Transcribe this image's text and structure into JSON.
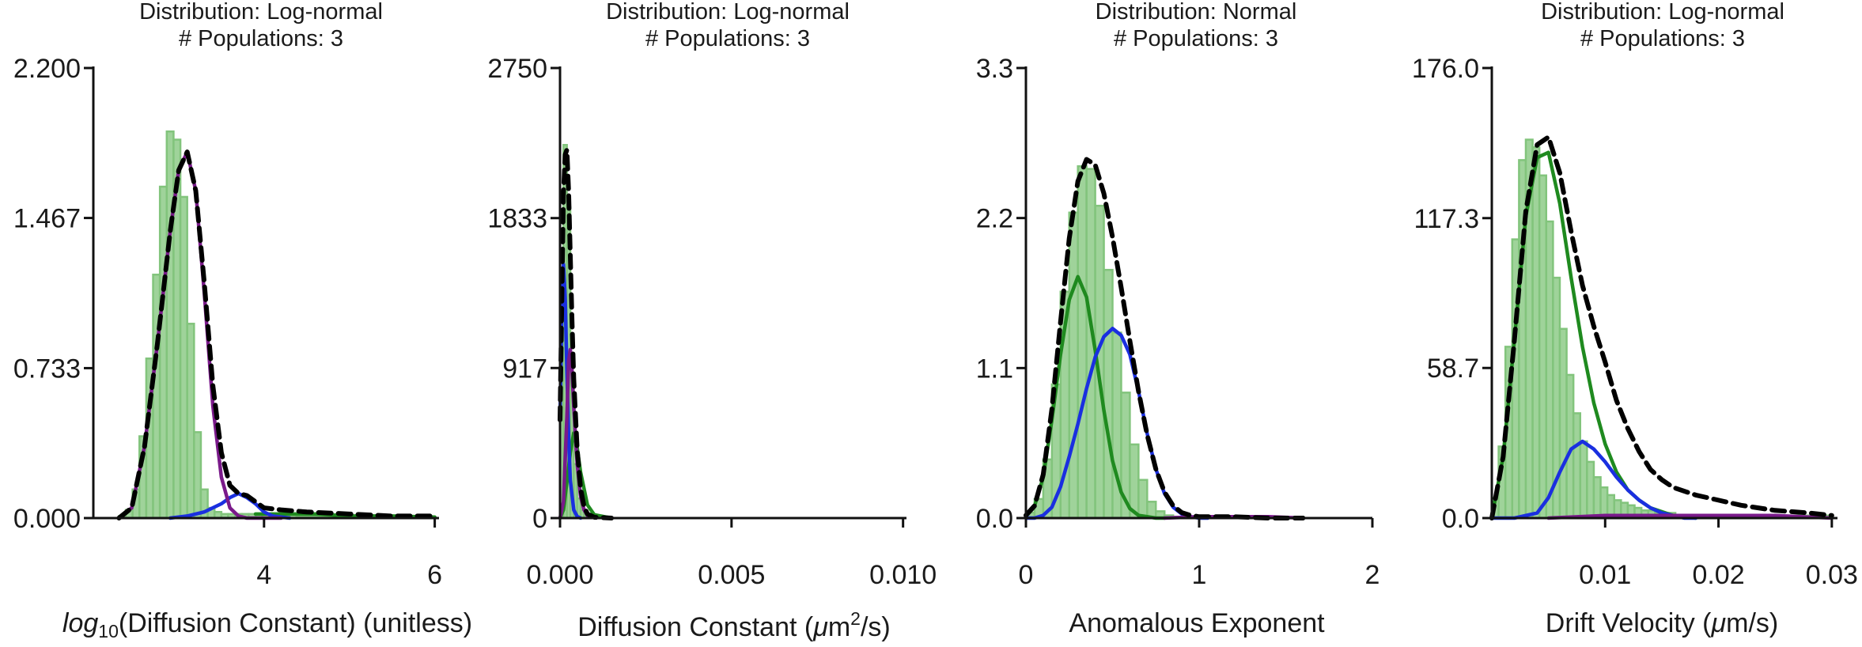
{
  "colors": {
    "histogram_fill": "#9fd39a",
    "histogram_edge": "#82c47c",
    "total_fit": "#000000",
    "component_green": "#1f8a1f",
    "component_blue": "#1a2fe0",
    "component_purple": "#7a1a8a"
  },
  "chart_data": [
    {
      "type": "bar",
      "title": "Distribution: Log-normal",
      "subtitle": "# Populations: 3",
      "xlabel": "log10(Diffusion Constant) (unitless)",
      "xlabel_parts": {
        "log": "log",
        "sub": "10",
        "rest": "(Diffusion Constant) (unitless)"
      },
      "ylabel": "",
      "xlim": [
        2.0,
        6.05
      ],
      "ylim": [
        0,
        2.2
      ],
      "xticks": [
        4,
        6
      ],
      "xtick_labels": [
        "4",
        "6"
      ],
      "yticks": [
        0,
        0.733,
        1.467,
        2.2
      ],
      "ytick_labels": [
        "0.000",
        "0.733",
        "1.467",
        "2.200"
      ],
      "bins": {
        "start": 2.3,
        "width": 0.08,
        "heights": [
          0.01,
          0.04,
          0.14,
          0.4,
          0.78,
          1.19,
          1.62,
          1.89,
          1.85,
          1.57,
          0.95,
          0.42,
          0.14,
          0.05,
          0.03,
          0.02,
          0.02,
          0.02,
          0.02,
          0.02,
          0.02,
          0.02,
          0.02,
          0.02,
          0.02,
          0.02,
          0.01,
          0.01,
          0.01,
          0.01,
          0.01,
          0.01,
          0.01,
          0.01,
          0.01,
          0.01,
          0.01,
          0.01,
          0.01
        ]
      },
      "series": [
        {
          "name": "",
          "style": "total",
          "x": [
            2.3,
            2.45,
            2.6,
            2.75,
            2.9,
            3.0,
            3.1,
            3.2,
            3.3,
            3.4,
            3.5,
            3.6,
            3.7,
            3.8,
            3.9,
            4.0,
            4.2,
            4.5,
            5.0,
            5.5,
            6.0
          ],
          "y": [
            0.0,
            0.05,
            0.35,
            0.85,
            1.4,
            1.7,
            1.79,
            1.6,
            1.15,
            0.65,
            0.32,
            0.16,
            0.12,
            0.11,
            0.08,
            0.05,
            0.04,
            0.03,
            0.02,
            0.01,
            0.01
          ]
        },
        {
          "name": "",
          "style": "purple",
          "x": [
            2.3,
            2.45,
            2.6,
            2.75,
            2.9,
            3.0,
            3.1,
            3.2,
            3.3,
            3.4,
            3.5,
            3.6,
            3.7,
            3.8,
            4.0,
            4.2
          ],
          "y": [
            0.0,
            0.05,
            0.35,
            0.85,
            1.4,
            1.7,
            1.79,
            1.6,
            1.1,
            0.55,
            0.2,
            0.05,
            0.01,
            0.0,
            0.0,
            0.0
          ]
        },
        {
          "name": "",
          "style": "blue",
          "x": [
            2.9,
            3.1,
            3.3,
            3.5,
            3.6,
            3.7,
            3.8,
            3.9,
            4.0,
            4.1,
            4.3
          ],
          "y": [
            0.0,
            0.01,
            0.03,
            0.07,
            0.1,
            0.12,
            0.1,
            0.07,
            0.03,
            0.01,
            0.0
          ]
        },
        {
          "name": "",
          "style": "green",
          "x": [
            3.9,
            4.2,
            4.6,
            5.0,
            5.5,
            6.0
          ],
          "y": [
            0.02,
            0.02,
            0.02,
            0.01,
            0.01,
            0.005
          ]
        }
      ]
    },
    {
      "type": "bar",
      "title": "Distribution: Log-normal",
      "subtitle": "# Populations: 3",
      "xlabel": "Diffusion Constant (μm²/s)",
      "xlabel_parts": {
        "pre": "Diffusion Constant (",
        "mu": "μ",
        "m": "m",
        "sup": "2",
        "post": "/s)"
      },
      "ylabel": "",
      "xlim": [
        0.0,
        0.0101
      ],
      "ylim": [
        0,
        2750
      ],
      "xticks": [
        0.0,
        0.005,
        0.01
      ],
      "xtick_labels": [
        "0.000",
        "0.005",
        "0.010"
      ],
      "yticks": [
        0,
        917,
        1833,
        2750
      ],
      "ytick_labels": [
        "0",
        "917",
        "1833",
        "2750"
      ],
      "bins": {
        "start": 0.0,
        "width": 0.0001,
        "heights": [
          1300,
          2280,
          1900,
          880,
          330,
          120,
          50,
          20,
          10,
          5,
          3
        ]
      },
      "series": [
        {
          "name": "",
          "style": "total",
          "x": [
            0.0,
            5e-05,
            0.0001,
            0.00015,
            0.0002,
            0.00025,
            0.0003,
            0.00035,
            0.0004,
            0.0005,
            0.0006,
            0.0007,
            0.0008,
            0.001,
            0.0015
          ],
          "y": [
            600,
            1300,
            1980,
            2220,
            2250,
            2000,
            1600,
            1200,
            850,
            420,
            180,
            70,
            25,
            5,
            0
          ]
        },
        {
          "name": "",
          "style": "blue",
          "x": [
            0.0,
            5e-05,
            0.0001,
            0.00015,
            0.0002,
            0.00025,
            0.0003,
            0.0004,
            0.0005,
            0.0006
          ],
          "y": [
            600,
            1250,
            1550,
            1350,
            900,
            500,
            230,
            50,
            10,
            0
          ]
        },
        {
          "name": "",
          "style": "purple",
          "x": [
            0.0,
            0.0001,
            0.0002,
            0.00025,
            0.0003,
            0.00035,
            0.0004,
            0.0005,
            0.0006,
            0.0007,
            0.0008
          ],
          "y": [
            0,
            100,
            620,
            960,
            1030,
            900,
            680,
            330,
            130,
            50,
            15
          ]
        },
        {
          "name": "",
          "style": "green",
          "x": [
            0.0,
            0.0001,
            0.0002,
            0.0003,
            0.0004,
            0.0005,
            0.0006,
            0.0008,
            0.001,
            0.0015
          ],
          "y": [
            0,
            50,
            220,
            400,
            520,
            430,
            280,
            80,
            20,
            0
          ]
        }
      ]
    },
    {
      "type": "bar",
      "title": "Distribution: Normal",
      "subtitle": "# Populations: 3",
      "xlabel": "Anomalous Exponent",
      "ylabel": "",
      "xlim": [
        0.0,
        2.0
      ],
      "ylim": [
        0,
        3.3
      ],
      "xticks": [
        0,
        1,
        2
      ],
      "xtick_labels": [
        "0",
        "1",
        "2"
      ],
      "yticks": [
        0,
        1.1,
        2.2,
        3.3
      ],
      "ytick_labels": [
        "0.0",
        "1.1",
        "2.2",
        "3.3"
      ],
      "bins": {
        "start": 0.0,
        "width": 0.05,
        "heights": [
          0.04,
          0.14,
          0.43,
          0.98,
          1.66,
          2.24,
          2.58,
          2.56,
          2.29,
          1.82,
          1.36,
          0.92,
          0.54,
          0.28,
          0.12,
          0.05,
          0.02,
          0.01,
          0.01,
          0.01,
          0.01,
          0.01,
          0.01,
          0.01,
          0.01,
          0.01,
          0.01,
          0.01,
          0.01,
          0.01,
          0.01,
          0.01
        ]
      },
      "series": [
        {
          "name": "",
          "style": "total",
          "x": [
            0.0,
            0.05,
            0.1,
            0.15,
            0.2,
            0.25,
            0.3,
            0.35,
            0.4,
            0.45,
            0.5,
            0.55,
            0.6,
            0.65,
            0.7,
            0.75,
            0.8,
            0.85,
            0.9,
            0.95,
            1.0,
            1.1,
            1.2,
            1.4,
            1.6
          ],
          "y": [
            0.02,
            0.09,
            0.32,
            0.8,
            1.44,
            2.05,
            2.47,
            2.63,
            2.59,
            2.38,
            2.06,
            1.69,
            1.3,
            0.93,
            0.61,
            0.36,
            0.19,
            0.09,
            0.04,
            0.02,
            0.01,
            0.01,
            0.01,
            0.0,
            0.0
          ]
        },
        {
          "name": "",
          "style": "green",
          "x": [
            0.0,
            0.05,
            0.1,
            0.15,
            0.2,
            0.25,
            0.3,
            0.35,
            0.4,
            0.45,
            0.5,
            0.55,
            0.6,
            0.65,
            0.7,
            0.75,
            0.8
          ],
          "y": [
            0.02,
            0.09,
            0.3,
            0.72,
            1.2,
            1.6,
            1.77,
            1.62,
            1.23,
            0.79,
            0.42,
            0.19,
            0.07,
            0.02,
            0.01,
            0.0,
            0.0
          ]
        },
        {
          "name": "",
          "style": "blue",
          "x": [
            0.0,
            0.05,
            0.1,
            0.15,
            0.2,
            0.25,
            0.3,
            0.35,
            0.4,
            0.45,
            0.5,
            0.55,
            0.6,
            0.65,
            0.7,
            0.75,
            0.8,
            0.85,
            0.9,
            0.95,
            1.0,
            1.05
          ],
          "y": [
            0.0,
            0.0,
            0.02,
            0.08,
            0.23,
            0.45,
            0.69,
            0.95,
            1.18,
            1.33,
            1.39,
            1.34,
            1.2,
            0.93,
            0.62,
            0.36,
            0.18,
            0.08,
            0.03,
            0.01,
            0.0,
            0.0
          ]
        },
        {
          "name": "",
          "style": "purple",
          "x": [
            0.8,
            1.0,
            1.2,
            1.4,
            1.6
          ],
          "y": [
            0.0,
            0.01,
            0.01,
            0.01,
            0.0
          ]
        }
      ]
    },
    {
      "type": "bar",
      "title": "Distribution: Log-normal",
      "subtitle": "# Populations: 3",
      "xlabel": "Drift Velocity (μm/s)",
      "xlabel_parts": {
        "pre": "Drift Velocity (",
        "mu": "μ",
        "post": "m/s)"
      },
      "ylabel": "",
      "xlim": [
        0.0,
        0.0305
      ],
      "ylim": [
        0,
        176.0
      ],
      "xticks": [
        0.01,
        0.02,
        0.03
      ],
      "xtick_labels": [
        "0.01",
        "0.02",
        "0.03"
      ],
      "yticks": [
        0,
        58.7,
        117.3,
        176.0
      ],
      "ytick_labels": [
        "0.0",
        "58.7",
        "117.3",
        "176.0"
      ],
      "bins": {
        "start": 0.0,
        "width": 0.0006,
        "heights": [
          8,
          28,
          67,
          109,
          140,
          148,
          145,
          134,
          116,
          94,
          74,
          56,
          41,
          30,
          22,
          16,
          12,
          9,
          7,
          6,
          5,
          4,
          3,
          3,
          2,
          2,
          2,
          1,
          1,
          1,
          1,
          1,
          1,
          1,
          1,
          1,
          1,
          1,
          1,
          1,
          1,
          1,
          1,
          1,
          1,
          1,
          1,
          1,
          1,
          1
        ]
      },
      "series": [
        {
          "name": "",
          "style": "total",
          "x": [
            0.0,
            0.001,
            0.002,
            0.003,
            0.004,
            0.005,
            0.006,
            0.007,
            0.008,
            0.009,
            0.01,
            0.011,
            0.012,
            0.013,
            0.014,
            0.015,
            0.016,
            0.018,
            0.02,
            0.022,
            0.025,
            0.028,
            0.03
          ],
          "y": [
            0,
            24,
            70,
            120,
            146,
            149,
            135,
            112,
            91,
            75,
            61,
            46,
            35,
            26,
            19,
            15,
            12,
            9,
            7,
            5,
            3,
            2,
            1
          ]
        },
        {
          "name": "",
          "style": "green",
          "x": [
            0.0,
            0.001,
            0.002,
            0.003,
            0.004,
            0.005,
            0.006,
            0.007,
            0.008,
            0.009,
            0.01,
            0.011,
            0.012,
            0.013,
            0.014,
            0.016,
            0.018
          ],
          "y": [
            0,
            24,
            70,
            118,
            141,
            143,
            123,
            94,
            67,
            45,
            29,
            18,
            11,
            7,
            4,
            1,
            0
          ]
        },
        {
          "name": "",
          "style": "blue",
          "x": [
            0.0,
            0.002,
            0.004,
            0.005,
            0.006,
            0.007,
            0.008,
            0.009,
            0.01,
            0.011,
            0.012,
            0.013,
            0.014,
            0.015,
            0.016,
            0.017,
            0.018
          ],
          "y": [
            0,
            0,
            2,
            8,
            18,
            27,
            30,
            27,
            22,
            16,
            11,
            7,
            4,
            2,
            1,
            0,
            0
          ]
        },
        {
          "name": "",
          "style": "purple",
          "x": [
            0.005,
            0.01,
            0.015,
            0.02,
            0.025,
            0.03
          ],
          "y": [
            0,
            1,
            1,
            1,
            1,
            0
          ]
        }
      ]
    }
  ]
}
